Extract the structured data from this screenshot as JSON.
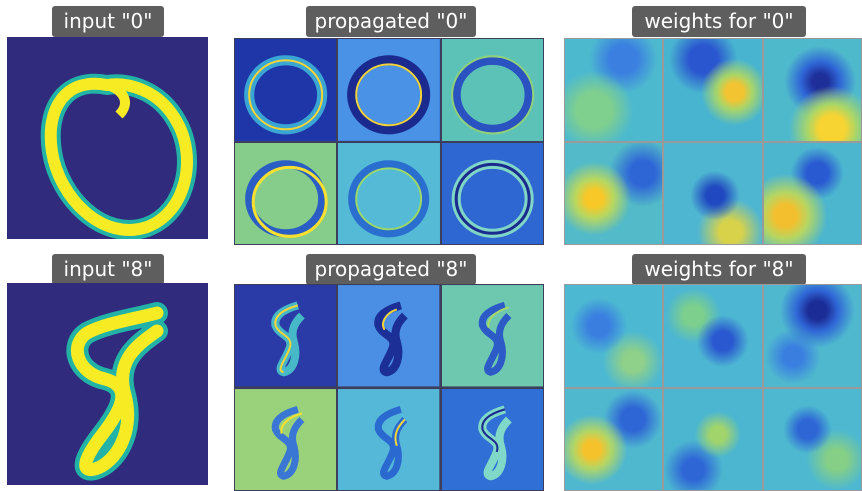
{
  "rows": [
    {
      "input_label": "input \"0\"",
      "propagated_label": "propagated \"0\"",
      "weights_label": "weights for \"0\"",
      "digit": "0"
    },
    {
      "input_label": "input \"8\"",
      "propagated_label": "propagated \"8\"",
      "weights_label": "weights for \"8\"",
      "digit": "8"
    }
  ],
  "colors": {
    "background_navy": "#312b7e",
    "digit_yellow": "#f7ec24",
    "digit_teal": "#22b3a6",
    "field_blue": "#2f6fd8",
    "field_cyan": "#39b6c9",
    "field_yellow": "#f2d43a",
    "label_bg": "#5e5e5e"
  }
}
